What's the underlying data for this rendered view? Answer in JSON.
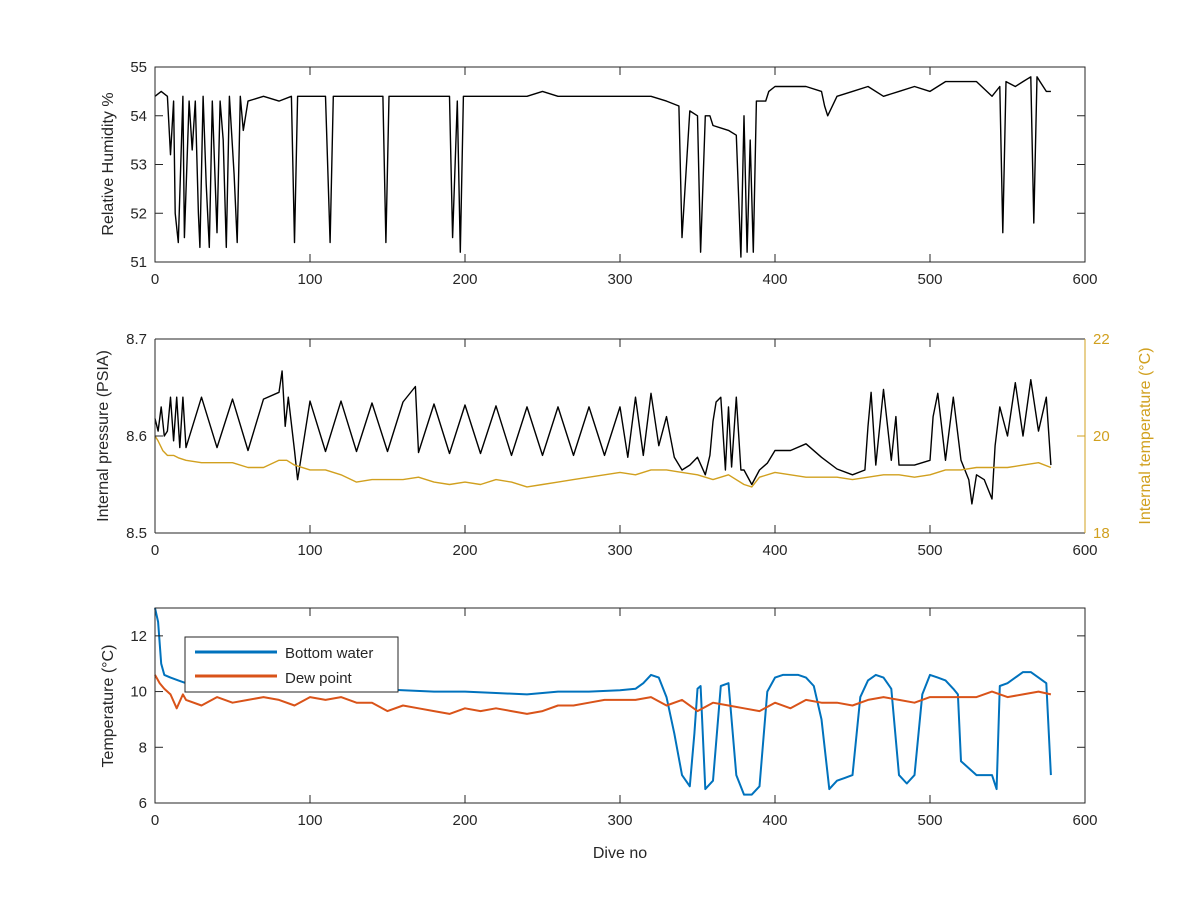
{
  "chart_data": [
    {
      "type": "line",
      "title": "",
      "xlabel": "",
      "ylabel": "Relative Humidity %",
      "xlim": [
        0,
        600
      ],
      "ylim": [
        51,
        55
      ],
      "xticks": [
        "0",
        "100",
        "200",
        "300",
        "400",
        "500",
        "600"
      ],
      "yticks": [
        "51",
        "52",
        "53",
        "54",
        "55"
      ],
      "grid": false,
      "series": [
        {
          "color": "#000000",
          "x": [
            0,
            4,
            8,
            10,
            12,
            13,
            15,
            18,
            19,
            22,
            24,
            26,
            28,
            29,
            31,
            33,
            35,
            37,
            40,
            42,
            44,
            46,
            48,
            51,
            53,
            55,
            57,
            60,
            70,
            80,
            88,
            90,
            92,
            100,
            110,
            113,
            115,
            120,
            130,
            140,
            147,
            149,
            151,
            160,
            170,
            180,
            190,
            192,
            195,
            197,
            199,
            201,
            205,
            210,
            220,
            230,
            240,
            250,
            260,
            270,
            280,
            290,
            300,
            310,
            320,
            330,
            338,
            340,
            345,
            350,
            352,
            355,
            358,
            360,
            370,
            375,
            378,
            380,
            382,
            384,
            386,
            388,
            390,
            392,
            394,
            396,
            400,
            410,
            420,
            430,
            432,
            434,
            440,
            450,
            460,
            470,
            480,
            490,
            500,
            510,
            520,
            530,
            540,
            545,
            547,
            549,
            555,
            560,
            565,
            567,
            569,
            571,
            575,
            578
          ],
          "y": [
            54.4,
            54.5,
            54.4,
            53.2,
            54.3,
            52.0,
            51.4,
            54.4,
            51.5,
            54.3,
            53.3,
            54.3,
            52.0,
            51.3,
            54.4,
            52.6,
            51.3,
            54.3,
            51.6,
            54.3,
            53.5,
            51.3,
            54.4,
            52.8,
            51.4,
            54.4,
            53.7,
            54.3,
            54.4,
            54.3,
            54.4,
            51.4,
            54.4,
            54.4,
            54.4,
            51.4,
            54.4,
            54.4,
            54.4,
            54.4,
            54.4,
            51.4,
            54.4,
            54.4,
            54.4,
            54.4,
            54.4,
            51.5,
            54.3,
            51.2,
            54.4,
            54.4,
            54.4,
            54.4,
            54.4,
            54.4,
            54.4,
            54.5,
            54.4,
            54.4,
            54.4,
            54.4,
            54.4,
            54.4,
            54.4,
            54.3,
            54.2,
            51.5,
            54.1,
            54.0,
            51.2,
            54.0,
            54.0,
            53.8,
            53.7,
            53.6,
            51.1,
            54.0,
            51.2,
            53.5,
            51.2,
            54.3,
            54.3,
            54.3,
            54.3,
            54.5,
            54.6,
            54.6,
            54.6,
            54.5,
            54.2,
            54.0,
            54.4,
            54.5,
            54.6,
            54.4,
            54.5,
            54.6,
            54.5,
            54.7,
            54.7,
            54.7,
            54.4,
            54.6,
            51.6,
            54.7,
            54.6,
            54.7,
            54.8,
            51.8,
            54.8,
            54.7,
            54.5,
            54.5
          ]
        }
      ]
    },
    {
      "type": "line",
      "title": "",
      "xlabel": "",
      "ylabel": "Internal pressure (PSIA)",
      "y2label": "Internal temperature (°C)",
      "xlim": [
        0,
        600
      ],
      "ylim": [
        8.5,
        8.7
      ],
      "y2lim": [
        18,
        22
      ],
      "xticks": [
        "0",
        "100",
        "200",
        "300",
        "400",
        "500",
        "600"
      ],
      "yticks": [
        "8.5",
        "8.6",
        "8.7"
      ],
      "y2ticks": [
        "18",
        "20",
        "22"
      ],
      "grid": false,
      "series": [
        {
          "color": "#000000",
          "axis": "left",
          "x": [
            0,
            2,
            4,
            6,
            8,
            10,
            12,
            14,
            16,
            18,
            20,
            30,
            40,
            50,
            60,
            70,
            80,
            82,
            84,
            86,
            90,
            92,
            100,
            110,
            120,
            130,
            140,
            150,
            160,
            168,
            170,
            180,
            190,
            200,
            210,
            220,
            230,
            240,
            250,
            260,
            270,
            280,
            290,
            300,
            305,
            310,
            315,
            320,
            325,
            330,
            335,
            340,
            345,
            350,
            355,
            358,
            360,
            362,
            365,
            368,
            370,
            372,
            375,
            378,
            380,
            385,
            390,
            395,
            400,
            410,
            420,
            430,
            440,
            450,
            458,
            460,
            462,
            465,
            470,
            475,
            478,
            480,
            490,
            500,
            502,
            505,
            510,
            515,
            520,
            525,
            527,
            530,
            535,
            540,
            542,
            545,
            550,
            555,
            560,
            565,
            570,
            575,
            578
          ],
          "y": [
            8.618,
            8.605,
            8.63,
            8.6,
            8.605,
            8.64,
            8.595,
            8.64,
            8.588,
            8.64,
            8.588,
            8.64,
            8.588,
            8.638,
            8.585,
            8.638,
            8.645,
            8.667,
            8.61,
            8.64,
            8.585,
            8.555,
            8.636,
            8.584,
            8.636,
            8.584,
            8.634,
            8.584,
            8.635,
            8.651,
            8.583,
            8.633,
            8.582,
            8.632,
            8.582,
            8.631,
            8.58,
            8.63,
            8.58,
            8.63,
            8.58,
            8.63,
            8.58,
            8.63,
            8.578,
            8.64,
            8.58,
            8.644,
            8.59,
            8.62,
            8.578,
            8.565,
            8.57,
            8.578,
            8.56,
            8.58,
            8.615,
            8.635,
            8.64,
            8.565,
            8.63,
            8.568,
            8.64,
            8.565,
            8.565,
            8.55,
            8.565,
            8.572,
            8.585,
            8.585,
            8.592,
            8.578,
            8.566,
            8.56,
            8.565,
            8.61,
            8.645,
            8.57,
            8.648,
            8.575,
            8.62,
            8.57,
            8.57,
            8.575,
            8.62,
            8.644,
            8.575,
            8.64,
            8.575,
            8.555,
            8.53,
            8.56,
            8.555,
            8.535,
            8.59,
            8.63,
            8.6,
            8.655,
            8.6,
            8.658,
            8.605,
            8.64,
            8.57
          ]
        },
        {
          "color": "#D1A01F",
          "axis": "right",
          "x": [
            0,
            2,
            5,
            8,
            12,
            15,
            20,
            30,
            40,
            50,
            60,
            70,
            80,
            85,
            90,
            100,
            110,
            120,
            130,
            140,
            150,
            160,
            170,
            180,
            190,
            200,
            210,
            220,
            230,
            240,
            250,
            260,
            270,
            280,
            290,
            300,
            310,
            320,
            330,
            340,
            350,
            360,
            370,
            380,
            385,
            390,
            400,
            410,
            420,
            430,
            440,
            450,
            460,
            470,
            480,
            490,
            500,
            510,
            520,
            530,
            540,
            550,
            560,
            570,
            578
          ],
          "y": [
            20.0,
            19.9,
            19.7,
            19.6,
            19.6,
            19.55,
            19.5,
            19.45,
            19.45,
            19.45,
            19.35,
            19.35,
            19.5,
            19.5,
            19.4,
            19.3,
            19.3,
            19.2,
            19.05,
            19.1,
            19.1,
            19.1,
            19.15,
            19.05,
            19.0,
            19.05,
            19.0,
            19.1,
            19.05,
            18.95,
            19.0,
            19.05,
            19.1,
            19.15,
            19.2,
            19.25,
            19.2,
            19.3,
            19.3,
            19.25,
            19.2,
            19.1,
            19.2,
            19.0,
            18.95,
            19.15,
            19.25,
            19.2,
            19.15,
            19.15,
            19.15,
            19.1,
            19.15,
            19.2,
            19.2,
            19.15,
            19.2,
            19.3,
            19.3,
            19.35,
            19.35,
            19.35,
            19.4,
            19.45,
            19.35
          ]
        }
      ]
    },
    {
      "type": "line",
      "title": "",
      "xlabel": "Dive no",
      "ylabel": "Temperature (°C)",
      "xlim": [
        0,
        600
      ],
      "ylim": [
        6,
        13
      ],
      "xticks": [
        "0",
        "100",
        "200",
        "300",
        "400",
        "500",
        "600"
      ],
      "yticks": [
        "6",
        "8",
        "10",
        "12"
      ],
      "grid": false,
      "legend": "top-left",
      "series": [
        {
          "name": "Bottom water",
          "color": "#0072BD",
          "x": [
            0,
            2,
            4,
            6,
            10,
            15,
            20,
            30,
            40,
            50,
            60,
            70,
            80,
            90,
            100,
            120,
            140,
            160,
            180,
            200,
            220,
            240,
            260,
            280,
            300,
            310,
            315,
            320,
            325,
            330,
            335,
            340,
            345,
            348,
            350,
            352,
            355,
            360,
            365,
            370,
            375,
            380,
            385,
            390,
            395,
            400,
            405,
            410,
            415,
            420,
            425,
            430,
            435,
            440,
            445,
            450,
            455,
            460,
            465,
            470,
            475,
            480,
            485,
            490,
            495,
            500,
            505,
            510,
            515,
            518,
            520,
            530,
            540,
            543,
            545,
            550,
            555,
            560,
            565,
            570,
            575,
            578
          ],
          "y": [
            13.0,
            12.5,
            11.0,
            10.6,
            10.5,
            10.4,
            10.3,
            10.3,
            10.2,
            10.2,
            10.2,
            10.2,
            10.2,
            10.2,
            10.2,
            10.1,
            10.1,
            10.05,
            10.0,
            10.0,
            9.95,
            9.9,
            10.0,
            10.0,
            10.05,
            10.1,
            10.3,
            10.6,
            10.5,
            9.8,
            8.5,
            7.0,
            6.6,
            8.5,
            10.1,
            10.2,
            6.5,
            6.8,
            10.2,
            10.3,
            7.0,
            6.3,
            6.3,
            6.6,
            10.0,
            10.5,
            10.6,
            10.6,
            10.6,
            10.5,
            10.2,
            9.0,
            6.5,
            6.8,
            6.9,
            7.0,
            9.8,
            10.4,
            10.6,
            10.5,
            10.1,
            7.0,
            6.7,
            7.0,
            9.9,
            10.6,
            10.5,
            10.4,
            10.1,
            9.9,
            7.5,
            7.0,
            7.0,
            6.5,
            10.2,
            10.3,
            10.5,
            10.7,
            10.7,
            10.5,
            10.3,
            7.0
          ]
        },
        {
          "name": "Dew point",
          "color": "#D95319",
          "x": [
            0,
            3,
            6,
            10,
            14,
            18,
            20,
            30,
            40,
            50,
            60,
            70,
            80,
            90,
            100,
            110,
            120,
            130,
            140,
            150,
            160,
            170,
            180,
            190,
            200,
            210,
            220,
            230,
            240,
            250,
            260,
            270,
            280,
            290,
            300,
            310,
            320,
            330,
            340,
            350,
            360,
            370,
            380,
            390,
            400,
            410,
            420,
            430,
            440,
            450,
            460,
            470,
            480,
            490,
            500,
            510,
            520,
            530,
            540,
            550,
            560,
            570,
            578
          ],
          "y": [
            10.6,
            10.3,
            10.1,
            9.9,
            9.4,
            9.9,
            9.7,
            9.5,
            9.8,
            9.6,
            9.7,
            9.8,
            9.7,
            9.5,
            9.8,
            9.7,
            9.8,
            9.6,
            9.6,
            9.3,
            9.5,
            9.4,
            9.3,
            9.2,
            9.4,
            9.3,
            9.4,
            9.3,
            9.2,
            9.3,
            9.5,
            9.5,
            9.6,
            9.7,
            9.7,
            9.7,
            9.8,
            9.5,
            9.7,
            9.3,
            9.6,
            9.5,
            9.4,
            9.3,
            9.6,
            9.4,
            9.7,
            9.6,
            9.6,
            9.5,
            9.7,
            9.8,
            9.7,
            9.6,
            9.8,
            9.8,
            9.8,
            9.8,
            10.0,
            9.8,
            9.9,
            10.0,
            9.9
          ]
        }
      ]
    }
  ]
}
